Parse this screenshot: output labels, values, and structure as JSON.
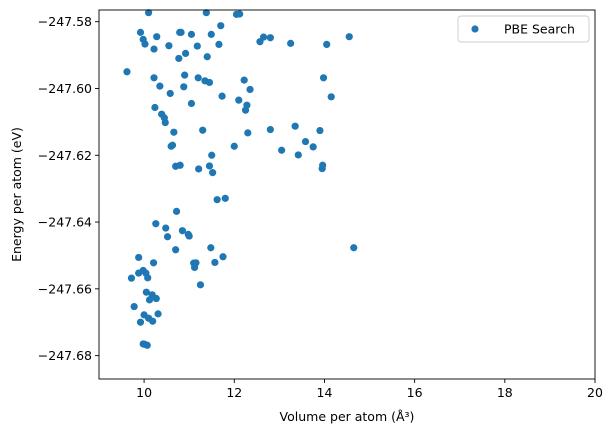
{
  "chart_data": {
    "type": "scatter",
    "title": "",
    "xlabel": "Volume per atom (Å$^3$)",
    "xlabel_display": "Volume per atom (Å³)",
    "ylabel": "Energy per atom (eV)",
    "xlim": [
      9.0,
      20.0
    ],
    "ylim": [
      -247.687,
      -247.5765
    ],
    "xticks": [
      10,
      12,
      14,
      16,
      18,
      20
    ],
    "yticks": [
      -247.68,
      -247.66,
      -247.64,
      -247.62,
      -247.6,
      -247.58
    ],
    "ytick_labels": [
      "−247.68",
      "−247.66",
      "−247.64",
      "−247.62",
      "−247.60",
      "−247.58"
    ],
    "grid": false,
    "legend_position": "top-right",
    "series": [
      {
        "name": "PBE Search",
        "color": "#1f77b4",
        "points": [
          [
            9.62,
            -247.595
          ],
          [
            9.72,
            -247.6568
          ],
          [
            9.78,
            -247.6653
          ],
          [
            9.88,
            -247.6506
          ],
          [
            9.88,
            -247.6553
          ],
          [
            9.92,
            -247.67
          ],
          [
            9.92,
            -247.5832
          ],
          [
            9.98,
            -247.6545
          ],
          [
            9.98,
            -247.5853
          ],
          [
            9.98,
            -247.6765
          ],
          [
            10.0,
            -247.6678
          ],
          [
            10.01,
            -247.6766
          ],
          [
            10.02,
            -247.5867
          ],
          [
            10.04,
            -247.6553
          ],
          [
            10.05,
            -247.661
          ],
          [
            10.07,
            -247.6769
          ],
          [
            10.08,
            -247.6567
          ],
          [
            10.1,
            -247.5773
          ],
          [
            10.1,
            -247.6688
          ],
          [
            10.12,
            -247.6633
          ],
          [
            10.18,
            -247.6618
          ],
          [
            10.19,
            -247.6697
          ],
          [
            10.21,
            -247.6522
          ],
          [
            10.22,
            -247.5882
          ],
          [
            10.22,
            -247.5968
          ],
          [
            10.24,
            -247.6057
          ],
          [
            10.26,
            -247.6405
          ],
          [
            10.27,
            -247.6629
          ],
          [
            10.28,
            -247.5845
          ],
          [
            10.31,
            -247.6675
          ],
          [
            10.35,
            -247.5993
          ],
          [
            10.39,
            -247.6077
          ],
          [
            10.45,
            -247.6088
          ],
          [
            10.47,
            -247.6102
          ],
          [
            10.48,
            -247.6418
          ],
          [
            10.52,
            -247.6444
          ],
          [
            10.55,
            -247.5872
          ],
          [
            10.58,
            -247.6015
          ],
          [
            10.6,
            -247.6173
          ],
          [
            10.63,
            -247.617
          ],
          [
            10.66,
            -247.6131
          ],
          [
            10.7,
            -247.6233
          ],
          [
            10.7,
            -247.6483
          ],
          [
            10.72,
            -247.6368
          ],
          [
            10.77,
            -247.591
          ],
          [
            10.79,
            -247.5832
          ],
          [
            10.8,
            -247.623
          ],
          [
            10.82,
            -247.5832
          ],
          [
            10.85,
            -247.6426
          ],
          [
            10.88,
            -247.5995
          ],
          [
            10.9,
            -247.596
          ],
          [
            10.92,
            -247.5895
          ],
          [
            10.98,
            -247.6437
          ],
          [
            11.0,
            -247.6442
          ],
          [
            11.05,
            -247.5838
          ],
          [
            11.05,
            -247.6045
          ],
          [
            11.1,
            -247.6523
          ],
          [
            11.12,
            -247.6536
          ],
          [
            11.15,
            -247.6522
          ],
          [
            11.18,
            -247.5873
          ],
          [
            11.2,
            -247.5968
          ],
          [
            11.21,
            -247.6241
          ],
          [
            11.25,
            -247.6588
          ],
          [
            11.3,
            -247.6125
          ],
          [
            11.35,
            -247.5977
          ],
          [
            11.38,
            -247.5773
          ],
          [
            11.4,
            -247.5905
          ],
          [
            11.45,
            -247.5982
          ],
          [
            11.45,
            -247.6232
          ],
          [
            11.48,
            -247.6477
          ],
          [
            11.49,
            -247.5838
          ],
          [
            11.5,
            -247.62
          ],
          [
            11.52,
            -247.6252
          ],
          [
            11.57,
            -247.6521
          ],
          [
            11.62,
            -247.6333
          ],
          [
            11.66,
            -247.5868
          ],
          [
            11.7,
            -247.5812
          ],
          [
            11.73,
            -247.6023
          ],
          [
            11.75,
            -247.6504
          ],
          [
            11.8,
            -247.6329
          ],
          [
            12.0,
            -247.6173
          ],
          [
            12.05,
            -247.5778
          ],
          [
            12.1,
            -247.6035
          ],
          [
            12.12,
            -247.5777
          ],
          [
            12.22,
            -247.5975
          ],
          [
            12.25,
            -247.6065
          ],
          [
            12.28,
            -247.605
          ],
          [
            12.3,
            -247.6133
          ],
          [
            12.35,
            -247.6003
          ],
          [
            12.57,
            -247.586
          ],
          [
            12.65,
            -247.5846
          ],
          [
            12.8,
            -247.5848
          ],
          [
            12.8,
            -247.6123
          ],
          [
            13.05,
            -247.6185
          ],
          [
            13.25,
            -247.5865
          ],
          [
            13.35,
            -247.6113
          ],
          [
            13.42,
            -247.6199
          ],
          [
            13.58,
            -247.6159
          ],
          [
            13.75,
            -247.6175
          ],
          [
            13.9,
            -247.6126
          ],
          [
            13.95,
            -247.624
          ],
          [
            13.96,
            -247.623
          ],
          [
            13.98,
            -247.5968
          ],
          [
            14.05,
            -247.5868
          ],
          [
            14.15,
            -247.6025
          ],
          [
            14.55,
            -247.5845
          ],
          [
            14.65,
            -247.6477
          ]
        ]
      }
    ]
  }
}
